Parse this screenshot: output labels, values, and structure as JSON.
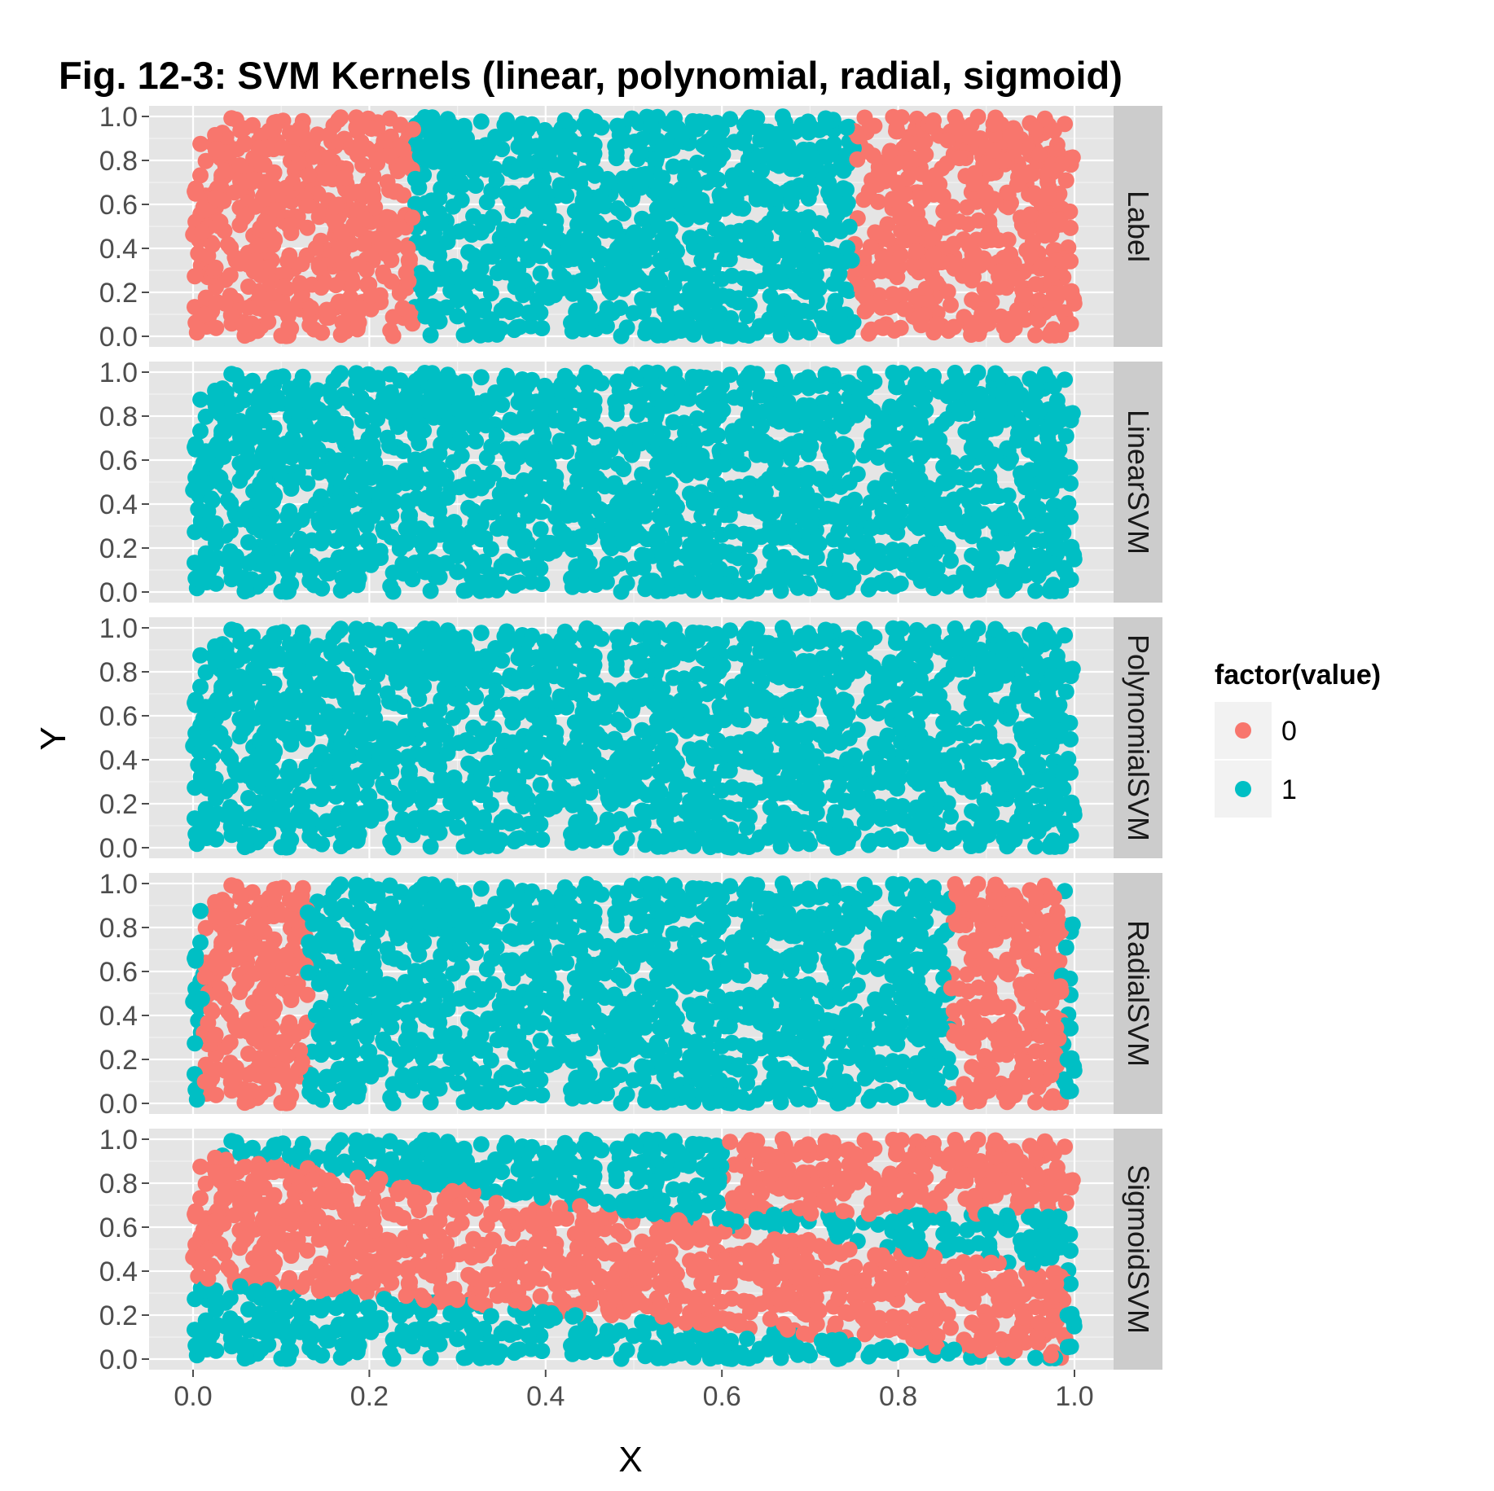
{
  "chart_data": {
    "type": "scatter",
    "title": "Fig. 12-3: SVM Kernels (linear, polynomial, radial, sigmoid)",
    "xlabel": "X",
    "ylabel": "Y",
    "xlim": [
      0.0,
      1.0
    ],
    "ylim": [
      0.0,
      1.0
    ],
    "x_ticks": [
      "0.0",
      "0.2",
      "0.4",
      "0.6",
      "0.8",
      "1.0"
    ],
    "y_ticks": [
      "0.0",
      "0.2",
      "0.4",
      "0.6",
      "0.8",
      "1.0"
    ],
    "facets": [
      {
        "name": "Label",
        "rule": "x < 0.25 or x > 0.75 → 0, else 1"
      },
      {
        "name": "LinearSVM",
        "rule": "all points → 1"
      },
      {
        "name": "PolynomialSVM",
        "rule": "all points → 1"
      },
      {
        "name": "RadialSVM",
        "rule": "0 where x ≈ 0.01–0.13 and x ≈ 0.86–0.98, else 1"
      },
      {
        "name": "SigmoidSVM",
        "rule": "0 in a descending band from upper-left (y ≈ 0.35–0.95) to lower-right, and in the upper-right region (x > 0.6, y > 0.65); else 1"
      }
    ],
    "legend": {
      "title": "factor(value)",
      "placement": "right",
      "entries": [
        {
          "label": "0",
          "color": "#F8766D"
        },
        {
          "label": "1",
          "color": "#00BFC4"
        }
      ]
    },
    "grid": true,
    "n_points_per_panel": 2000
  }
}
